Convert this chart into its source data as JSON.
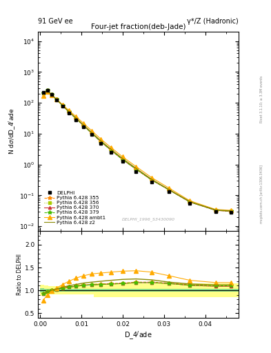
{
  "title_top_left": "91 GeV ee",
  "title_top_right": "γ*/Z (Hadronic)",
  "main_title": "Four-jet fraction(deb-Jade)",
  "watermark": "DELPHI_1996_S3430090",
  "right_label_top": "Rivet 3.1.10; ≥ 3.3M events",
  "right_label_bottom": "mcplots.cern.ch [arXiv:1306.3436]",
  "xlabel": "D_4ʲade",
  "ylabel_main": "N dσ/dD_4ʲade",
  "ylabel_ratio": "Ratio to DELPHI",
  "ylim_main_log": [
    0.007,
    20000
  ],
  "ylim_ratio": [
    0.4,
    2.3
  ],
  "xlim": [
    -0.0005,
    0.048
  ],
  "data_x": [
    0.00075,
    0.00175,
    0.00275,
    0.004,
    0.0055,
    0.007,
    0.00875,
    0.0105,
    0.0125,
    0.01475,
    0.01725,
    0.02,
    0.02325,
    0.027,
    0.03125,
    0.03625,
    0.0425,
    0.04625
  ],
  "data_y": [
    220,
    260,
    185,
    125,
    76,
    47,
    28,
    16.5,
    9.2,
    4.8,
    2.5,
    1.25,
    0.6,
    0.27,
    0.13,
    0.055,
    0.03,
    0.028
  ],
  "data_yerr": [
    12,
    14,
    10,
    7,
    4.5,
    2.8,
    1.7,
    1.0,
    0.55,
    0.3,
    0.16,
    0.08,
    0.04,
    0.02,
    0.01,
    0.005,
    0.003,
    0.003
  ],
  "series": [
    {
      "label": "Pythia 6.428 355",
      "color": "#ff8800",
      "linestyle": "--",
      "marker": "*",
      "markersize": 4,
      "ratio": [
        0.92,
        0.97,
        1.0,
        1.02,
        1.05,
        1.07,
        1.1,
        1.12,
        1.13,
        1.14,
        1.15,
        1.16,
        1.18,
        1.18,
        1.16,
        1.12,
        1.1,
        1.1
      ]
    },
    {
      "label": "Pythia 6.428 356",
      "color": "#aacc00",
      "linestyle": ":",
      "marker": "s",
      "markersize": 3,
      "ratio": [
        0.93,
        0.97,
        1.0,
        1.02,
        1.05,
        1.07,
        1.09,
        1.11,
        1.12,
        1.13,
        1.14,
        1.15,
        1.17,
        1.17,
        1.15,
        1.11,
        1.09,
        1.09
      ]
    },
    {
      "label": "Pythia 6.428 370",
      "color": "#cc3333",
      "linestyle": "-",
      "marker": "^",
      "markersize": 3,
      "ratio": [
        0.93,
        0.97,
        1.0,
        1.02,
        1.05,
        1.07,
        1.09,
        1.11,
        1.12,
        1.13,
        1.14,
        1.15,
        1.17,
        1.17,
        1.15,
        1.11,
        1.09,
        1.09
      ]
    },
    {
      "label": "Pythia 6.428 379",
      "color": "#44bb00",
      "linestyle": "--",
      "marker": "*",
      "markersize": 4,
      "ratio": [
        0.93,
        0.97,
        1.0,
        1.02,
        1.05,
        1.07,
        1.09,
        1.11,
        1.12,
        1.13,
        1.14,
        1.15,
        1.17,
        1.17,
        1.15,
        1.11,
        1.1,
        1.1
      ]
    },
    {
      "label": "Pythia 6.428 ambt1",
      "color": "#ffaa00",
      "linestyle": "-",
      "marker": "^",
      "markersize": 4,
      "ratio": [
        0.78,
        0.9,
        0.98,
        1.05,
        1.13,
        1.2,
        1.27,
        1.32,
        1.36,
        1.38,
        1.4,
        1.42,
        1.43,
        1.4,
        1.32,
        1.22,
        1.17,
        1.17
      ]
    },
    {
      "label": "Pythia 6.428 z2",
      "color": "#888800",
      "linestyle": "-",
      "marker": null,
      "markersize": 0,
      "ratio": [
        0.93,
        0.97,
        1.0,
        1.03,
        1.07,
        1.1,
        1.13,
        1.16,
        1.18,
        1.2,
        1.22,
        1.24,
        1.25,
        1.23,
        1.18,
        1.14,
        1.12,
        1.12
      ]
    }
  ],
  "band_x_edges": [
    0.0,
    0.001,
    0.002,
    0.003,
    0.005,
    0.007,
    0.009,
    0.011,
    0.013,
    0.015,
    0.018,
    0.021,
    0.025,
    0.03,
    0.036,
    0.043,
    0.048
  ],
  "band_green_lo": [
    0.96,
    0.97,
    0.97,
    0.97,
    0.97,
    0.97,
    0.97,
    0.975,
    0.975,
    0.975,
    0.975,
    0.975,
    0.975,
    0.975,
    0.975,
    0.975
  ],
  "band_green_hi": [
    1.04,
    1.03,
    1.03,
    1.03,
    1.03,
    1.03,
    1.03,
    1.025,
    1.025,
    1.025,
    1.025,
    1.025,
    1.025,
    1.025,
    1.025,
    1.025
  ],
  "band_yellow_lo": [
    0.88,
    0.9,
    0.91,
    0.91,
    0.91,
    0.91,
    0.91,
    0.91,
    0.85,
    0.85,
    0.85,
    0.85,
    0.85,
    0.85,
    0.85,
    0.85
  ],
  "band_yellow_hi": [
    1.12,
    1.1,
    1.09,
    1.09,
    1.09,
    1.09,
    1.09,
    1.09,
    1.15,
    1.15,
    1.15,
    1.15,
    1.15,
    1.15,
    1.15,
    1.15
  ]
}
